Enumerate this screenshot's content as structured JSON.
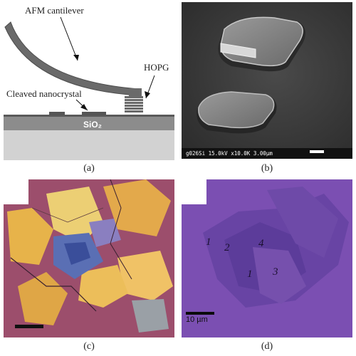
{
  "panel_a": {
    "cantilever_label": "AFM cantilever",
    "hopg_label": "HOPG",
    "nanocrystal_label": "Cleaved nanocrystal",
    "substrate_label": "SiO₂",
    "caption": "(a)"
  },
  "panel_b": {
    "sem_info": "g026Si 15.0kV x10.0K 3.00µm",
    "caption": "(b)"
  },
  "panel_c": {
    "caption": "(c)"
  },
  "panel_d": {
    "region_labels": [
      "1",
      "2",
      "4",
      "1",
      "3"
    ],
    "scale_label": "10 µm",
    "caption": "(d)"
  },
  "colors": {
    "substrate_top": "#8a8a8a",
    "substrate_bottom": "#cfcfcf",
    "cantilever": "#6b6b6b",
    "sem_background": "#3a3a3a",
    "optical_magenta": "#a0506e",
    "optical_gold": "#e8b045",
    "afm_purple": "#7a4fb0"
  }
}
